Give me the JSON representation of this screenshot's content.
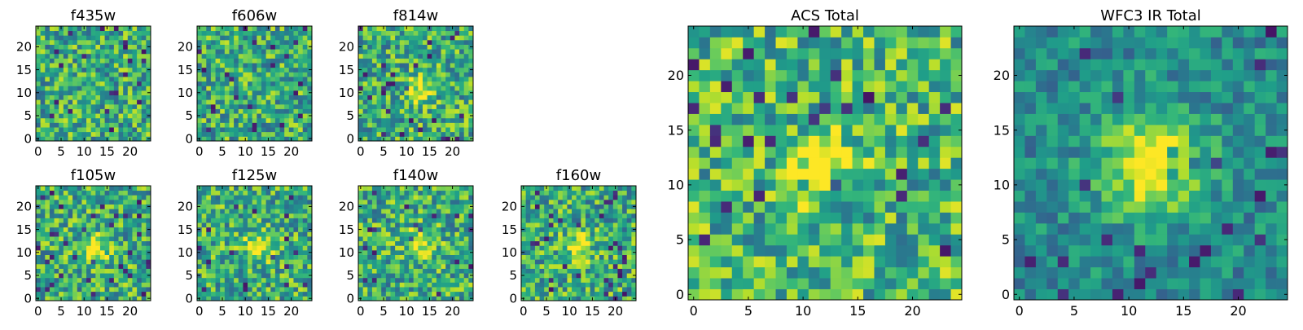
{
  "chart_data": [
    {
      "type": "heatmap",
      "title": "f435w",
      "xticks": [
        "0",
        "5",
        "10",
        "15",
        "20"
      ],
      "yticks": [
        "0",
        "5",
        "10",
        "15",
        "20"
      ],
      "xlim": [
        -0.5,
        24.5
      ],
      "ylim": [
        -0.5,
        24.5
      ],
      "grid_size": 25,
      "colormap": "viridis",
      "source_center": null
    },
    {
      "type": "heatmap",
      "title": "f606w",
      "xticks": [
        "0",
        "5",
        "10",
        "15",
        "20"
      ],
      "yticks": [
        "0",
        "5",
        "10",
        "15",
        "20"
      ],
      "xlim": [
        -0.5,
        24.5
      ],
      "ylim": [
        -0.5,
        24.5
      ],
      "grid_size": 25,
      "colormap": "viridis",
      "source_center": null
    },
    {
      "type": "heatmap",
      "title": "f814w",
      "xticks": [
        "0",
        "5",
        "10",
        "15",
        "20"
      ],
      "yticks": [
        "0",
        "5",
        "10",
        "15",
        "20"
      ],
      "xlim": [
        -0.5,
        24.5
      ],
      "ylim": [
        -0.5,
        24.5
      ],
      "grid_size": 25,
      "colormap": "viridis",
      "source_center": [
        13,
        11
      ]
    },
    {
      "type": "heatmap",
      "title": "f105w",
      "xticks": [
        "0",
        "5",
        "10",
        "15",
        "20"
      ],
      "yticks": [
        "0",
        "5",
        "10",
        "15",
        "20"
      ],
      "xlim": [
        -0.5,
        24.5
      ],
      "ylim": [
        -0.5,
        24.5
      ],
      "grid_size": 25,
      "colormap": "viridis",
      "source_center": [
        12,
        11
      ]
    },
    {
      "type": "heatmap",
      "title": "f125w",
      "xticks": [
        "0",
        "5",
        "10",
        "15",
        "20"
      ],
      "yticks": [
        "0",
        "5",
        "10",
        "15",
        "20"
      ],
      "xlim": [
        -0.5,
        24.5
      ],
      "ylim": [
        -0.5,
        24.5
      ],
      "grid_size": 25,
      "colormap": "viridis",
      "source_center": [
        13,
        11
      ]
    },
    {
      "type": "heatmap",
      "title": "f140w",
      "xticks": [
        "0",
        "5",
        "10",
        "15",
        "20"
      ],
      "yticks": [
        "0",
        "5",
        "10",
        "15",
        "20"
      ],
      "xlim": [
        -0.5,
        24.5
      ],
      "ylim": [
        -0.5,
        24.5
      ],
      "grid_size": 25,
      "colormap": "viridis",
      "source_center": [
        13,
        12
      ]
    },
    {
      "type": "heatmap",
      "title": "f160w",
      "xticks": [
        "0",
        "5",
        "10",
        "15",
        "20"
      ],
      "yticks": [
        "0",
        "5",
        "10",
        "15",
        "20"
      ],
      "xlim": [
        -0.5,
        24.5
      ],
      "ylim": [
        -0.5,
        24.5
      ],
      "grid_size": 25,
      "colormap": "viridis",
      "source_center": [
        12,
        11
      ]
    },
    {
      "type": "heatmap",
      "title": "ACS Total",
      "xticks": [
        "0",
        "5",
        "10",
        "15",
        "20"
      ],
      "yticks": [
        "0",
        "5",
        "10",
        "15",
        "20"
      ],
      "xlim": [
        -0.5,
        24.5
      ],
      "ylim": [
        -0.5,
        24.5
      ],
      "grid_size": 25,
      "colormap": "viridis",
      "source_center": [
        12,
        12
      ]
    },
    {
      "type": "heatmap",
      "title": "WFC3 IR Total",
      "xticks": [
        "0",
        "5",
        "10",
        "15",
        "20"
      ],
      "yticks": [
        "0",
        "5",
        "10",
        "15",
        "20"
      ],
      "xlim": [
        -0.5,
        24.5
      ],
      "ylim": [
        -0.5,
        24.5
      ],
      "grid_size": 25,
      "colormap": "viridis",
      "source_center": [
        12,
        12
      ]
    }
  ]
}
